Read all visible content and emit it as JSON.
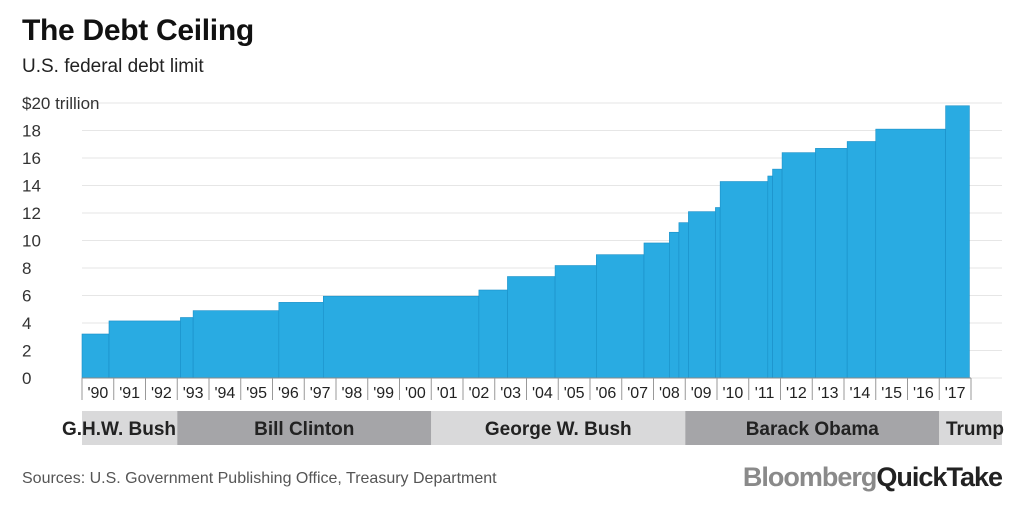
{
  "header": {
    "title": "The Debt Ceiling",
    "subtitle": "U.S. federal debt limit"
  },
  "footer": {
    "source": "Sources: U.S. Government Publishing Office, Treasury Department",
    "brand_part1": "Bloomberg",
    "brand_part2": "QuickTake"
  },
  "colors": {
    "bar": "#29abe2",
    "bar_edge": "#1a8fc7",
    "grid": "#e6e6e6",
    "band_light": "#d9d9da",
    "band_dark": "#a5a5a8"
  },
  "chart_data": {
    "type": "area",
    "title": "The Debt Ceiling",
    "subtitle": "U.S. federal debt limit",
    "ylabel": "",
    "ylim": [
      0,
      20
    ],
    "y_ticks": [
      0,
      2,
      4,
      6,
      8,
      10,
      12,
      14,
      16,
      18,
      20
    ],
    "y_tick_labels": [
      "0",
      "2",
      "4",
      "6",
      "8",
      "10",
      "12",
      "14",
      "16",
      "18",
      "$20 trillion"
    ],
    "x_ticks": [
      "'90",
      "'91",
      "'92",
      "'93",
      "'94",
      "'95",
      "'96",
      "'97",
      "'98",
      "'99",
      "'00",
      "'01",
      "'02",
      "'03",
      "'04",
      "'05",
      "'06",
      "'07",
      "'08",
      "'09",
      "'10",
      "'11",
      "'12",
      "'13",
      "'14",
      "'15",
      "'16",
      "'17"
    ],
    "x_range": [
      1990,
      2018
    ],
    "grid": true,
    "series": [
      {
        "values": [
          {
            "year": 1990.0,
            "limit": 3.2
          },
          {
            "year": 1990.85,
            "limit": 4.15
          },
          {
            "year": 1993.1,
            "limit": 4.4
          },
          {
            "year": 1993.5,
            "limit": 4.9
          },
          {
            "year": 1996.2,
            "limit": 5.5
          },
          {
            "year": 1997.6,
            "limit": 5.95
          },
          {
            "year": 2002.5,
            "limit": 6.4
          },
          {
            "year": 2003.4,
            "limit": 7.38
          },
          {
            "year": 2004.9,
            "limit": 8.18
          },
          {
            "year": 2006.2,
            "limit": 8.97
          },
          {
            "year": 2007.7,
            "limit": 9.82
          },
          {
            "year": 2008.5,
            "limit": 10.6
          },
          {
            "year": 2008.8,
            "limit": 11.3
          },
          {
            "year": 2009.1,
            "limit": 12.1
          },
          {
            "year": 2009.95,
            "limit": 12.4
          },
          {
            "year": 2010.1,
            "limit": 14.29
          },
          {
            "year": 2011.6,
            "limit": 14.69
          },
          {
            "year": 2011.75,
            "limit": 15.19
          },
          {
            "year": 2012.05,
            "limit": 16.39
          },
          {
            "year": 2013.1,
            "limit": 16.7
          },
          {
            "year": 2014.1,
            "limit": 17.2
          },
          {
            "year": 2015.0,
            "limit": 18.1
          },
          {
            "year": 2017.2,
            "limit": 19.8
          },
          {
            "year": 2017.95,
            "limit": 19.8
          }
        ]
      }
    ],
    "presidencies": [
      {
        "name": "G.H.W. Bush",
        "start": 1990.0,
        "end": 1993.0
      },
      {
        "name": "Bill Clinton",
        "start": 1993.0,
        "end": 2001.0
      },
      {
        "name": "George W. Bush",
        "start": 2001.0,
        "end": 2009.0
      },
      {
        "name": "Barack Obama",
        "start": 2009.0,
        "end": 2017.0
      },
      {
        "name": "Trump",
        "start": 2017.0,
        "end": 2018.0
      }
    ]
  }
}
